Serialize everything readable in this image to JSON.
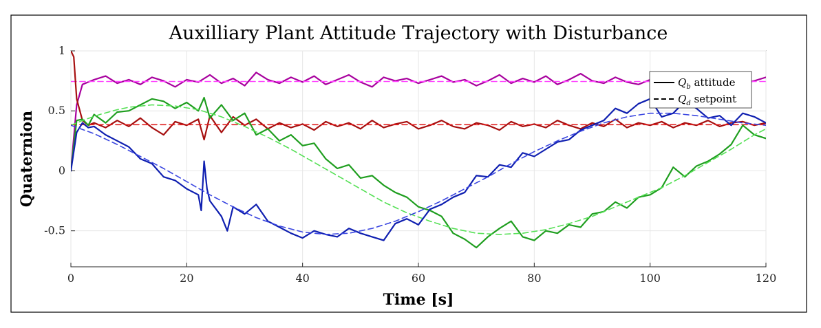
{
  "chart_data": {
    "type": "line",
    "title": "Auxilliary Plant Attitude Trajectory with Disturbance",
    "xlabel": "Time [s]",
    "ylabel": "Quaternion",
    "xlim": [
      0,
      120
    ],
    "ylim": [
      -0.8,
      1
    ],
    "xticks": [
      0,
      20,
      40,
      60,
      80,
      100,
      120
    ],
    "xtick_labels": [
      "0",
      "20",
      "40",
      "60",
      "80",
      "100",
      "120"
    ],
    "yticks": [
      -0.5,
      0,
      0.5,
      1
    ],
    "ytick_labels": [
      "-0.5",
      "0",
      "0.5",
      "1"
    ],
    "grid": true,
    "legend_position": "top-right",
    "legend": [
      {
        "label_main": "Q",
        "label_sub": "b",
        "label_rest": " attitude",
        "style": "solid"
      },
      {
        "label_main": "Q",
        "label_sub": "d",
        "label_rest": " setpoint",
        "style": "dashed"
      }
    ],
    "series": [
      {
        "color": "#A8009E",
        "style": "solid",
        "x": [
          0,
          1,
          2,
          4,
          6,
          8,
          10,
          12,
          14,
          16,
          18,
          20,
          22,
          24,
          26,
          28,
          30,
          32,
          34,
          36,
          38,
          40,
          42,
          44,
          46,
          48,
          50,
          52,
          54,
          56,
          58,
          60,
          62,
          64,
          66,
          68,
          70,
          72,
          74,
          76,
          78,
          80,
          82,
          84,
          86,
          88,
          90,
          92,
          94,
          96,
          98,
          100,
          102,
          104,
          106,
          108,
          110,
          112,
          114,
          116,
          118,
          120
        ],
        "y": [
          0.0,
          0.55,
          0.72,
          0.76,
          0.79,
          0.73,
          0.76,
          0.72,
          0.78,
          0.75,
          0.7,
          0.76,
          0.74,
          0.8,
          0.73,
          0.77,
          0.71,
          0.82,
          0.76,
          0.73,
          0.78,
          0.74,
          0.79,
          0.72,
          0.76,
          0.8,
          0.74,
          0.7,
          0.78,
          0.75,
          0.77,
          0.73,
          0.76,
          0.79,
          0.74,
          0.76,
          0.71,
          0.75,
          0.8,
          0.73,
          0.77,
          0.74,
          0.79,
          0.72,
          0.76,
          0.81,
          0.75,
          0.73,
          0.78,
          0.74,
          0.72,
          0.76,
          0.7,
          0.79,
          0.75,
          0.73,
          0.77,
          0.74,
          0.76,
          0.73,
          0.75,
          0.78
        ]
      },
      {
        "color": "#FF44FF",
        "style": "dashed",
        "x": [
          0,
          120
        ],
        "y": [
          0.745,
          0.745
        ]
      },
      {
        "color": "#A60F0F",
        "style": "solid",
        "x": [
          0,
          0.5,
          1,
          2,
          3,
          4,
          6,
          8,
          10,
          12,
          14,
          16,
          18,
          20,
          22,
          23,
          24,
          26,
          28,
          30,
          32,
          34,
          36,
          38,
          40,
          42,
          44,
          46,
          48,
          50,
          52,
          54,
          56,
          58,
          60,
          62,
          64,
          66,
          68,
          70,
          72,
          74,
          76,
          78,
          80,
          82,
          84,
          86,
          88,
          90,
          92,
          94,
          96,
          98,
          100,
          102,
          104,
          106,
          108,
          110,
          112,
          114,
          116,
          118,
          120
        ],
        "y": [
          1.0,
          0.95,
          0.6,
          0.42,
          0.38,
          0.4,
          0.36,
          0.42,
          0.37,
          0.44,
          0.36,
          0.3,
          0.41,
          0.38,
          0.43,
          0.26,
          0.46,
          0.32,
          0.45,
          0.38,
          0.43,
          0.35,
          0.4,
          0.36,
          0.39,
          0.34,
          0.41,
          0.37,
          0.4,
          0.35,
          0.42,
          0.36,
          0.39,
          0.41,
          0.35,
          0.38,
          0.42,
          0.37,
          0.35,
          0.4,
          0.38,
          0.34,
          0.41,
          0.37,
          0.39,
          0.36,
          0.42,
          0.38,
          0.35,
          0.4,
          0.37,
          0.43,
          0.36,
          0.4,
          0.38,
          0.41,
          0.36,
          0.4,
          0.38,
          0.42,
          0.37,
          0.4,
          0.41,
          0.38,
          0.4
        ]
      },
      {
        "color": "#E02020",
        "style": "dashed",
        "x": [
          0,
          120
        ],
        "y": [
          0.385,
          0.385
        ]
      },
      {
        "color": "#1F9E1F",
        "style": "solid",
        "x": [
          0,
          1,
          2,
          3,
          4,
          6,
          8,
          10,
          12,
          14,
          16,
          18,
          20,
          22,
          23,
          24,
          26,
          28,
          30,
          32,
          34,
          36,
          38,
          40,
          42,
          44,
          46,
          48,
          50,
          52,
          54,
          56,
          58,
          60,
          62,
          64,
          66,
          68,
          70,
          72,
          74,
          76,
          78,
          80,
          82,
          84,
          86,
          88,
          90,
          92,
          94,
          96,
          98,
          100,
          102,
          104,
          106,
          108,
          110,
          112,
          114,
          116,
          118,
          120
        ],
        "y": [
          0.0,
          0.42,
          0.43,
          0.38,
          0.47,
          0.4,
          0.49,
          0.5,
          0.55,
          0.6,
          0.58,
          0.52,
          0.57,
          0.5,
          0.61,
          0.44,
          0.55,
          0.42,
          0.48,
          0.3,
          0.35,
          0.25,
          0.3,
          0.21,
          0.23,
          0.1,
          0.02,
          0.05,
          -0.06,
          -0.04,
          -0.12,
          -0.18,
          -0.22,
          -0.3,
          -0.33,
          -0.38,
          -0.52,
          -0.57,
          -0.64,
          -0.55,
          -0.48,
          -0.42,
          -0.55,
          -0.58,
          -0.5,
          -0.52,
          -0.45,
          -0.47,
          -0.36,
          -0.34,
          -0.26,
          -0.31,
          -0.22,
          -0.2,
          -0.14,
          0.03,
          -0.05,
          0.04,
          0.08,
          0.14,
          0.22,
          0.38,
          0.3,
          0.27
        ]
      },
      {
        "color": "#55E055",
        "style": "dashed",
        "x": [
          0,
          2,
          5,
          8,
          10,
          14,
          18,
          22,
          26,
          30,
          34,
          38,
          42,
          46,
          50,
          54,
          58,
          62,
          66,
          70,
          74,
          78,
          82,
          86,
          90,
          94,
          98,
          102,
          106,
          110,
          114,
          118,
          120
        ],
        "y": [
          0.38,
          0.42,
          0.47,
          0.51,
          0.53,
          0.55,
          0.54,
          0.51,
          0.45,
          0.37,
          0.28,
          0.18,
          0.07,
          -0.04,
          -0.15,
          -0.26,
          -0.35,
          -0.42,
          -0.48,
          -0.52,
          -0.53,
          -0.52,
          -0.49,
          -0.44,
          -0.38,
          -0.3,
          -0.22,
          -0.14,
          -0.04,
          0.07,
          0.18,
          0.3,
          0.35
        ]
      },
      {
        "color": "#0F1FB0",
        "style": "solid",
        "x": [
          0,
          1,
          2,
          3,
          4,
          6,
          8,
          10,
          12,
          14,
          16,
          18,
          20,
          22,
          22.5,
          23,
          23.5,
          24,
          26,
          27,
          28,
          30,
          32,
          34,
          36,
          38,
          40,
          42,
          44,
          46,
          48,
          50,
          52,
          54,
          56,
          58,
          60,
          62,
          64,
          66,
          68,
          70,
          72,
          74,
          76,
          78,
          80,
          82,
          84,
          86,
          88,
          90,
          92,
          94,
          96,
          98,
          100,
          102,
          104,
          106,
          108,
          110,
          112,
          114,
          116,
          118,
          120
        ],
        "y": [
          0.0,
          0.32,
          0.4,
          0.36,
          0.37,
          0.3,
          0.25,
          0.2,
          0.1,
          0.06,
          -0.05,
          -0.08,
          -0.15,
          -0.2,
          -0.33,
          0.08,
          -0.15,
          -0.25,
          -0.38,
          -0.5,
          -0.3,
          -0.36,
          -0.28,
          -0.42,
          -0.47,
          -0.52,
          -0.56,
          -0.5,
          -0.53,
          -0.55,
          -0.48,
          -0.52,
          -0.55,
          -0.58,
          -0.44,
          -0.4,
          -0.45,
          -0.32,
          -0.28,
          -0.22,
          -0.18,
          -0.04,
          -0.05,
          0.05,
          0.03,
          0.15,
          0.12,
          0.18,
          0.24,
          0.26,
          0.34,
          0.38,
          0.42,
          0.52,
          0.48,
          0.56,
          0.6,
          0.45,
          0.48,
          0.58,
          0.52,
          0.44,
          0.46,
          0.38,
          0.48,
          0.45,
          0.4
        ]
      },
      {
        "color": "#3A46E0",
        "style": "dashed",
        "x": [
          0,
          4,
          8,
          12,
          16,
          20,
          24,
          28,
          32,
          36,
          40,
          44,
          48,
          52,
          56,
          60,
          64,
          68,
          72,
          76,
          80,
          84,
          88,
          92,
          96,
          100,
          104,
          108,
          112,
          116,
          120
        ],
        "y": [
          0.38,
          0.31,
          0.22,
          0.12,
          0.02,
          -0.09,
          -0.2,
          -0.3,
          -0.39,
          -0.46,
          -0.51,
          -0.53,
          -0.52,
          -0.48,
          -0.42,
          -0.34,
          -0.25,
          -0.15,
          -0.05,
          0.06,
          0.16,
          0.25,
          0.33,
          0.4,
          0.45,
          0.48,
          0.48,
          0.46,
          0.43,
          0.4,
          0.38
        ]
      }
    ]
  }
}
